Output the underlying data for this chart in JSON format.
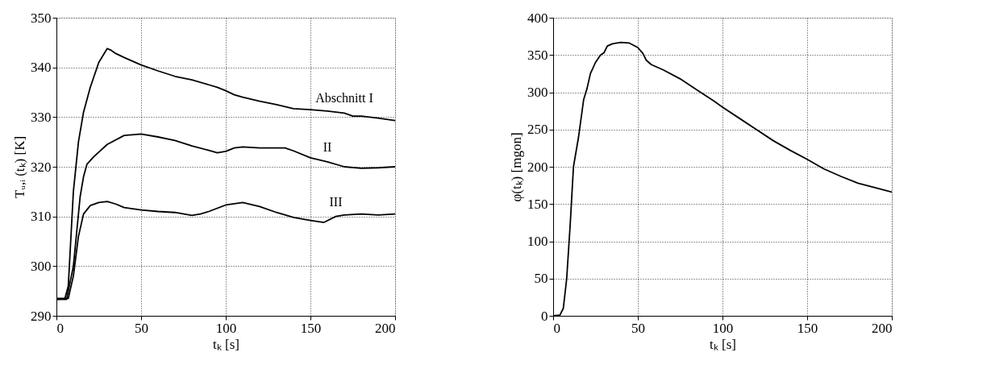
{
  "chart_data": [
    {
      "type": "line",
      "xlabel": "tₖ [s]",
      "ylabel": "Tᵤ,ᵢ (tₖ)  [K]",
      "xlim": [
        0,
        200
      ],
      "xticks": [
        0,
        50,
        100,
        150,
        200
      ],
      "ylim": [
        290,
        350
      ],
      "yticks": [
        290,
        300,
        310,
        320,
        330,
        340,
        350
      ],
      "grid": true,
      "series": [
        {
          "color": "#000000",
          "x": [
            0,
            5,
            7,
            10,
            13,
            16,
            20,
            25,
            30,
            32,
            35,
            40,
            50,
            60,
            70,
            80,
            90,
            95,
            100,
            105,
            110,
            120,
            130,
            140,
            150,
            160,
            170,
            175,
            180,
            190,
            200
          ],
          "values": [
            293.5,
            293.5,
            296,
            315,
            325,
            331,
            336,
            341,
            343.8,
            343.5,
            342.8,
            342,
            340.5,
            339.3,
            338.2,
            337.5,
            336.5,
            336,
            335.3,
            334.5,
            334,
            333.2,
            332.5,
            331.7,
            331.5,
            331.2,
            330.8,
            330.2,
            330.2,
            329.8,
            329.3
          ]
        },
        {
          "color": "#000000",
          "x": [
            0,
            6,
            10,
            14,
            16,
            18,
            22,
            30,
            40,
            50,
            60,
            70,
            80,
            90,
            95,
            100,
            105,
            110,
            120,
            130,
            135,
            140,
            150,
            160,
            170,
            180,
            190,
            200
          ],
          "values": [
            293.3,
            293.3,
            300,
            314,
            318,
            320.5,
            322,
            324.5,
            326.3,
            326.6,
            326,
            325.3,
            324.2,
            323.3,
            322.8,
            323.1,
            323.8,
            324,
            323.8,
            323.8,
            323.8,
            323.2,
            321.8,
            321,
            320,
            319.7,
            319.8,
            320
          ]
        },
        {
          "color": "#000000",
          "x": [
            0,
            7,
            10,
            13,
            16,
            20,
            25,
            30,
            35,
            40,
            50,
            60,
            70,
            80,
            85,
            90,
            100,
            110,
            120,
            130,
            140,
            150,
            158,
            165,
            170,
            180,
            190,
            200
          ],
          "values": [
            293.3,
            293.5,
            298,
            306,
            310.5,
            312.2,
            312.8,
            313,
            312.5,
            311.8,
            311.3,
            311,
            310.8,
            310.2,
            310.5,
            311,
            312.3,
            312.8,
            312,
            310.8,
            309.8,
            309.2,
            308.8,
            310,
            310.3,
            310.5,
            310.3,
            310.5
          ]
        }
      ],
      "annotations": [
        "Abschnitt I",
        "II",
        "III"
      ]
    },
    {
      "type": "line",
      "xlabel": "tₖ [s]",
      "ylabel": "φ(tₖ)  [mgon]",
      "xlim": [
        0,
        200
      ],
      "xticks": [
        0,
        50,
        100,
        150,
        200
      ],
      "ylim": [
        0,
        400
      ],
      "yticks": [
        0,
        50,
        100,
        150,
        200,
        250,
        300,
        350,
        400
      ],
      "grid": true,
      "series": [
        {
          "color": "#000000",
          "x": [
            0,
            4,
            6,
            8,
            10,
            12,
            15,
            18,
            20,
            22,
            25,
            28,
            30,
            32,
            35,
            40,
            45,
            50,
            53,
            55,
            58,
            65,
            75,
            85,
            95,
            100,
            110,
            120,
            130,
            140,
            150,
            160,
            170,
            180,
            190,
            200
          ],
          "values": [
            0,
            1,
            10,
            50,
            120,
            200,
            240,
            290,
            305,
            325,
            340,
            350,
            353,
            362,
            365,
            367,
            366,
            360,
            352,
            343,
            337,
            330,
            318,
            303,
            288,
            280,
            265,
            250,
            235,
            222,
            210,
            197,
            187,
            178,
            172,
            166
          ]
        }
      ]
    }
  ]
}
